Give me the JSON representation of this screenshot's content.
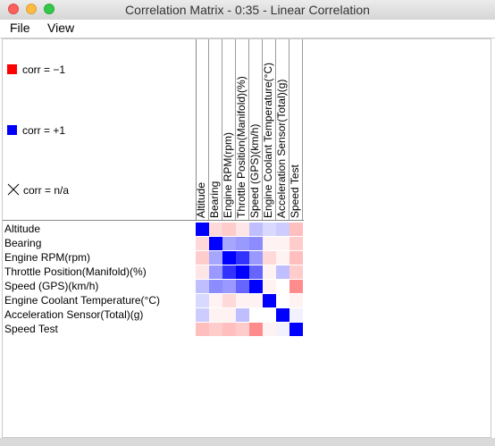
{
  "window": {
    "title": "Correlation Matrix - 0:35 - Linear Correlation"
  },
  "menu": {
    "file": "File",
    "view": "View"
  },
  "legend": {
    "neg": {
      "label": "corr = −1",
      "color": "#ff0000"
    },
    "pos": {
      "label": "corr = +1",
      "color": "#0000ff"
    },
    "na": {
      "label": "corr = n/a"
    }
  },
  "variables": [
    "Altitude",
    "Bearing",
    "Engine RPM(rpm)",
    "Throttle Position(Manifold)(%)",
    "Speed (GPS)(km/h)",
    "Engine Coolant Temperature(°C)",
    "Acceleration Sensor(Total)(g)",
    "Speed Test"
  ],
  "matrix": [
    [
      1.0,
      -0.15,
      -0.2,
      -0.1,
      0.25,
      0.15,
      0.2,
      -0.25
    ],
    [
      -0.15,
      1.0,
      0.35,
      0.4,
      0.45,
      -0.05,
      -0.05,
      -0.2
    ],
    [
      -0.2,
      0.35,
      1.0,
      0.8,
      0.4,
      -0.15,
      -0.05,
      -0.25
    ],
    [
      -0.1,
      0.4,
      0.8,
      1.0,
      0.6,
      -0.05,
      0.25,
      -0.2
    ],
    [
      0.25,
      0.45,
      0.4,
      0.6,
      1.0,
      -0.05,
      0.0,
      -0.45
    ],
    [
      0.15,
      -0.05,
      -0.15,
      -0.05,
      -0.05,
      1.0,
      0.0,
      -0.05
    ],
    [
      0.2,
      -0.05,
      -0.05,
      0.25,
      0.0,
      0.0,
      1.0,
      0.05
    ],
    [
      -0.25,
      -0.2,
      -0.25,
      -0.2,
      -0.45,
      -0.05,
      0.05,
      1.0
    ]
  ]
}
